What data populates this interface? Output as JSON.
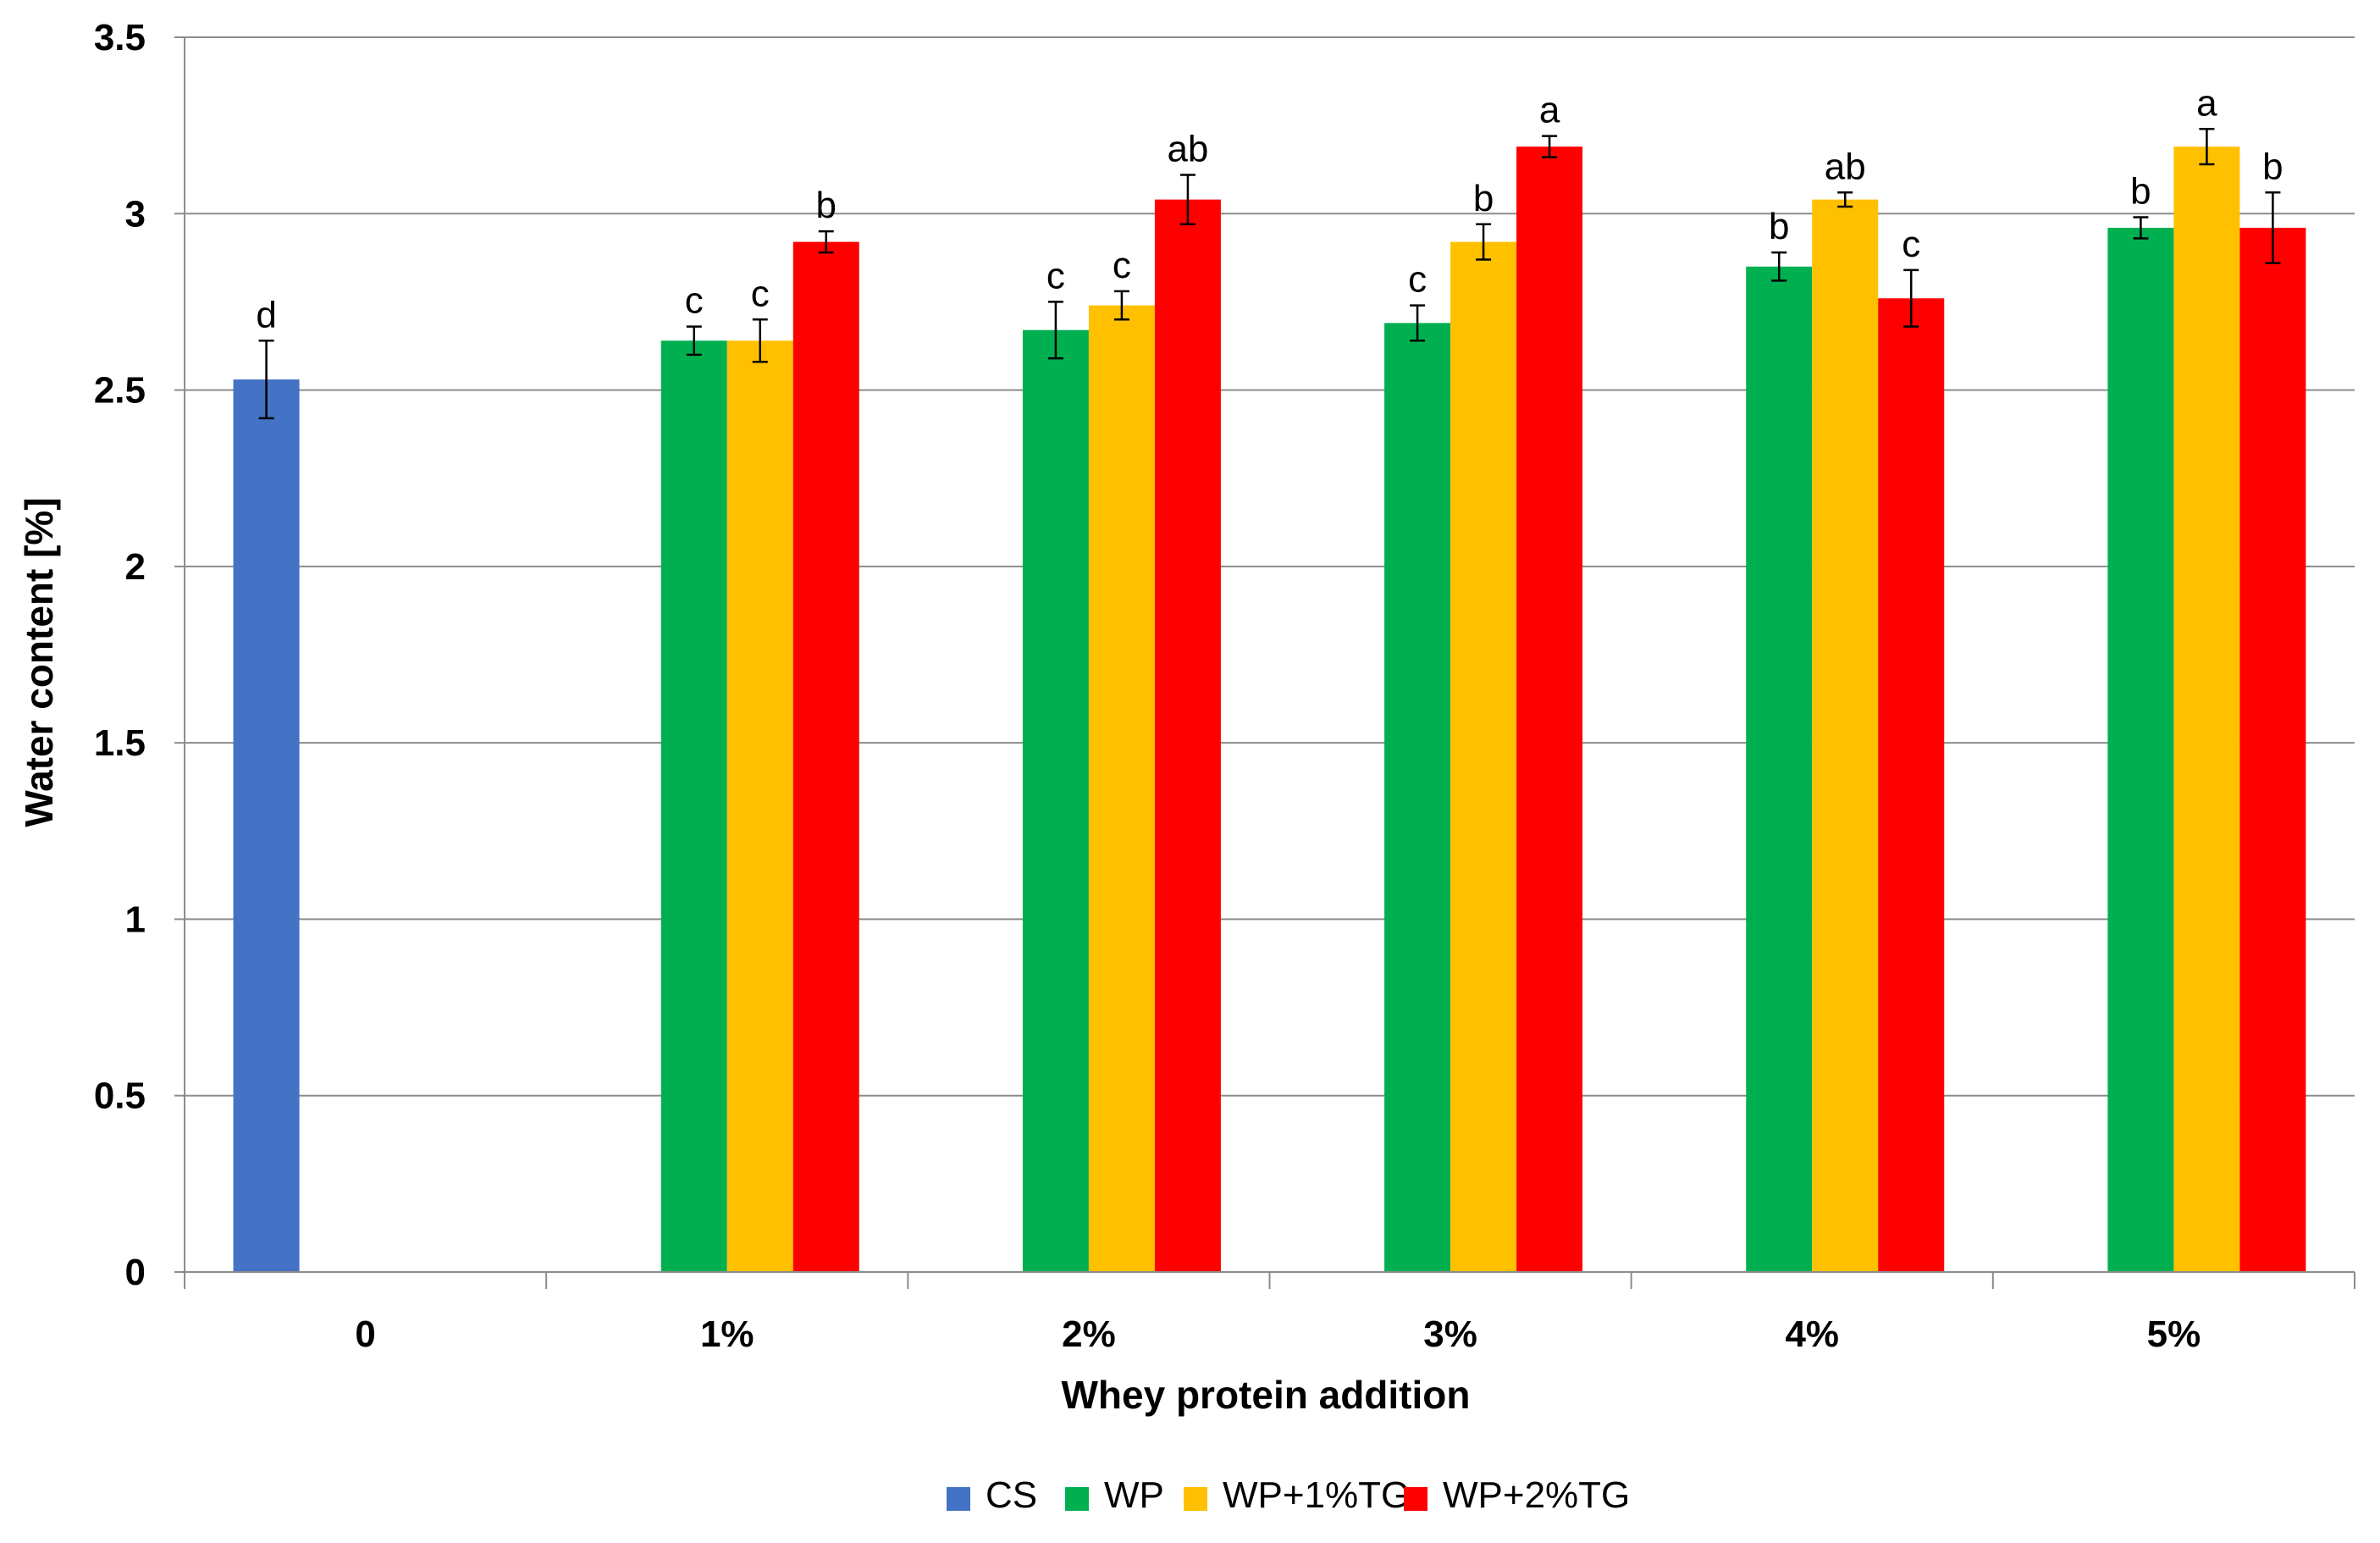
{
  "chart_data": {
    "type": "bar",
    "title": "",
    "xlabel": "Whey protein addition",
    "ylabel": "Water content [%]",
    "ylim": [
      0,
      3.5
    ],
    "yticks": [
      0,
      0.5,
      1,
      1.5,
      2,
      2.5,
      3,
      3.5
    ],
    "ytick_labels": [
      "0",
      "0.5",
      "1",
      "1.5",
      "2",
      "2.5",
      "3",
      "3.5"
    ],
    "grid": true,
    "legend_position": "bottom-center",
    "categories": [
      "0",
      "1%",
      "2%",
      "3%",
      "4%",
      "5%"
    ],
    "series": [
      {
        "name": "CS",
        "color": "#4472C4",
        "values": [
          2.53,
          null,
          null,
          null,
          null,
          null
        ],
        "errors": [
          0.11,
          null,
          null,
          null,
          null,
          null
        ],
        "labels": [
          "d",
          "",
          "",
          "",
          "",
          ""
        ]
      },
      {
        "name": "WP",
        "color": "#00B050",
        "values": [
          null,
          2.64,
          2.67,
          2.69,
          2.85,
          2.96
        ],
        "errors": [
          null,
          0.04,
          0.08,
          0.05,
          0.04,
          0.03
        ],
        "labels": [
          "",
          "c",
          "c",
          "c",
          "b",
          "b"
        ]
      },
      {
        "name": "WP+1%TG",
        "color": "#FFC000",
        "values": [
          null,
          2.64,
          2.74,
          2.92,
          3.04,
          3.19
        ],
        "errors": [
          null,
          0.06,
          0.04,
          0.05,
          0.02,
          0.05
        ],
        "labels": [
          "",
          "c",
          "c",
          "b",
          "ab",
          "a"
        ]
      },
      {
        "name": "WP+2%TG",
        "color": "#FF0000",
        "values": [
          null,
          2.92,
          3.04,
          3.19,
          2.76,
          2.96
        ],
        "errors": [
          null,
          0.03,
          0.07,
          0.03,
          0.08,
          0.1
        ],
        "labels": [
          "",
          "b",
          "ab",
          "a",
          "c",
          "b"
        ]
      }
    ]
  }
}
